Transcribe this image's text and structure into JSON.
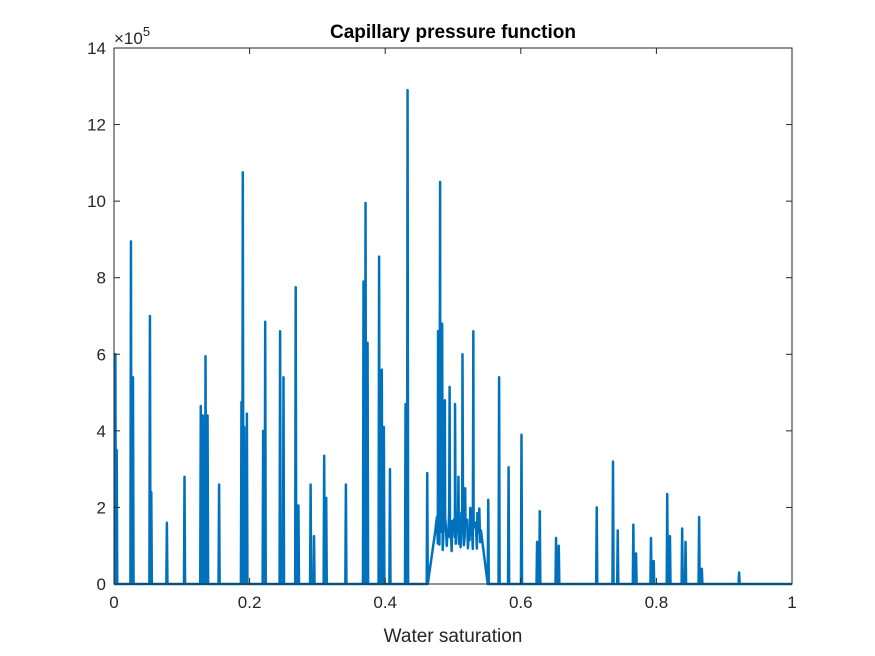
{
  "chart_data": {
    "type": "line",
    "title": "Capillary pressure function",
    "xlabel": "Water saturation",
    "ylabel": "",
    "xlim": [
      0,
      1
    ],
    "ylim": [
      0,
      1400000
    ],
    "y_exponent_label": {
      "base": "×10",
      "power": "5"
    },
    "xticks": [
      "0",
      "0.2",
      "0.4",
      "0.6",
      "0.8",
      "1"
    ],
    "xtick_values": [
      0,
      0.2,
      0.4,
      0.6,
      0.8,
      1
    ],
    "yticks": [
      "0",
      "2",
      "4",
      "6",
      "8",
      "10",
      "12",
      "14"
    ],
    "ytick_values": [
      0,
      200000,
      400000,
      600000,
      800000,
      1000000,
      1200000,
      1400000
    ],
    "grid": false,
    "legend": "none",
    "series": [
      {
        "color": "#0072BD",
        "peaks": [
          [
            0.002,
            600000
          ],
          [
            0.004,
            350000
          ],
          [
            0.025,
            895000
          ],
          [
            0.028,
            540000
          ],
          [
            0.053,
            700000
          ],
          [
            0.055,
            240000
          ],
          [
            0.078,
            160000
          ],
          [
            0.104,
            280000
          ],
          [
            0.128,
            465000
          ],
          [
            0.131,
            440000
          ],
          [
            0.135,
            595000
          ],
          [
            0.138,
            440000
          ],
          [
            0.155,
            260000
          ],
          [
            0.188,
            475000
          ],
          [
            0.19,
            1075000
          ],
          [
            0.192,
            410000
          ],
          [
            0.196,
            445000
          ],
          [
            0.22,
            400000
          ],
          [
            0.223,
            685000
          ],
          [
            0.245,
            660000
          ],
          [
            0.25,
            540000
          ],
          [
            0.268,
            775000
          ],
          [
            0.272,
            205000
          ],
          [
            0.29,
            260000
          ],
          [
            0.295,
            125000
          ],
          [
            0.31,
            335000
          ],
          [
            0.313,
            225000
          ],
          [
            0.342,
            260000
          ],
          [
            0.368,
            790000
          ],
          [
            0.371,
            995000
          ],
          [
            0.374,
            630000
          ],
          [
            0.391,
            855000
          ],
          [
            0.395,
            560000
          ],
          [
            0.398,
            410000
          ],
          [
            0.407,
            300000
          ],
          [
            0.43,
            470000
          ],
          [
            0.433,
            1290000
          ],
          [
            0.462,
            290000
          ],
          [
            0.478,
            660000
          ],
          [
            0.481,
            1050000
          ],
          [
            0.484,
            680000
          ],
          [
            0.488,
            480000
          ],
          [
            0.495,
            515000
          ],
          [
            0.503,
            470000
          ],
          [
            0.508,
            280000
          ],
          [
            0.514,
            600000
          ],
          [
            0.518,
            250000
          ],
          [
            0.53,
            660000
          ],
          [
            0.536,
            185000
          ],
          [
            0.552,
            220000
          ],
          [
            0.568,
            540000
          ],
          [
            0.582,
            305000
          ],
          [
            0.601,
            390000
          ],
          [
            0.624,
            110000
          ],
          [
            0.628,
            190000
          ],
          [
            0.652,
            120000
          ],
          [
            0.656,
            100000
          ],
          [
            0.712,
            200000
          ],
          [
            0.736,
            320000
          ],
          [
            0.743,
            140000
          ],
          [
            0.766,
            155000
          ],
          [
            0.77,
            80000
          ],
          [
            0.792,
            120000
          ],
          [
            0.796,
            60000
          ],
          [
            0.816,
            235000
          ],
          [
            0.82,
            125000
          ],
          [
            0.838,
            145000
          ],
          [
            0.843,
            110000
          ],
          [
            0.863,
            175000
          ],
          [
            0.867,
            40000
          ],
          [
            0.922,
            30000
          ]
        ],
        "cluster": {
          "x_start": 0.474,
          "x_end": 0.542,
          "base": 140000,
          "amplitude": 60000
        }
      }
    ]
  }
}
